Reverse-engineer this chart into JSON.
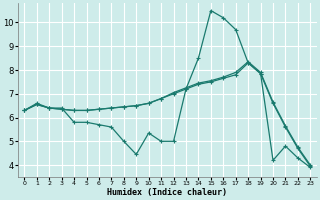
{
  "xlabel": "Humidex (Indice chaleur)",
  "bg_color": "#ceecea",
  "grid_color": "#ffffff",
  "line_color": "#1a7a6e",
  "xlim": [
    -0.5,
    23.5
  ],
  "ylim": [
    3.5,
    10.8
  ],
  "xticks": [
    0,
    1,
    2,
    3,
    4,
    5,
    6,
    7,
    8,
    9,
    10,
    11,
    12,
    13,
    14,
    15,
    16,
    17,
    18,
    19,
    20,
    21,
    22,
    23
  ],
  "yticks": [
    4,
    5,
    6,
    7,
    8,
    9,
    10
  ],
  "line1_x": [
    0,
    1,
    2,
    3,
    4,
    5,
    6,
    7,
    8,
    9,
    10,
    11,
    12,
    13,
    14,
    15,
    16,
    17,
    18,
    19,
    20,
    21,
    22,
    23
  ],
  "line1_y": [
    6.3,
    6.6,
    6.4,
    6.4,
    5.8,
    5.8,
    5.7,
    5.6,
    5.0,
    4.45,
    5.35,
    5.0,
    5.0,
    7.2,
    8.5,
    10.5,
    10.2,
    9.7,
    8.3,
    7.85,
    4.2,
    4.8,
    4.3,
    3.9
  ],
  "line2_x": [
    0,
    1,
    2,
    3,
    4,
    5,
    6,
    7,
    8,
    9,
    10,
    11,
    12,
    13,
    14,
    15,
    16,
    17,
    18,
    19,
    20,
    21,
    22,
    23
  ],
  "line2_y": [
    6.3,
    6.55,
    6.4,
    6.35,
    6.3,
    6.3,
    6.35,
    6.4,
    6.45,
    6.5,
    6.6,
    6.8,
    7.0,
    7.2,
    7.4,
    7.5,
    7.65,
    7.8,
    8.3,
    7.85,
    6.6,
    5.6,
    4.7,
    3.95
  ],
  "line3_x": [
    0,
    1,
    2,
    3,
    4,
    5,
    6,
    7,
    8,
    9,
    10,
    11,
    12,
    13,
    14,
    15,
    16,
    17,
    18,
    19,
    20,
    21,
    22,
    23
  ],
  "line3_y": [
    6.3,
    6.55,
    6.4,
    6.35,
    6.3,
    6.3,
    6.35,
    6.4,
    6.45,
    6.5,
    6.6,
    6.8,
    7.05,
    7.25,
    7.45,
    7.55,
    7.7,
    7.9,
    8.35,
    7.9,
    6.65,
    5.65,
    4.75,
    4.0
  ]
}
